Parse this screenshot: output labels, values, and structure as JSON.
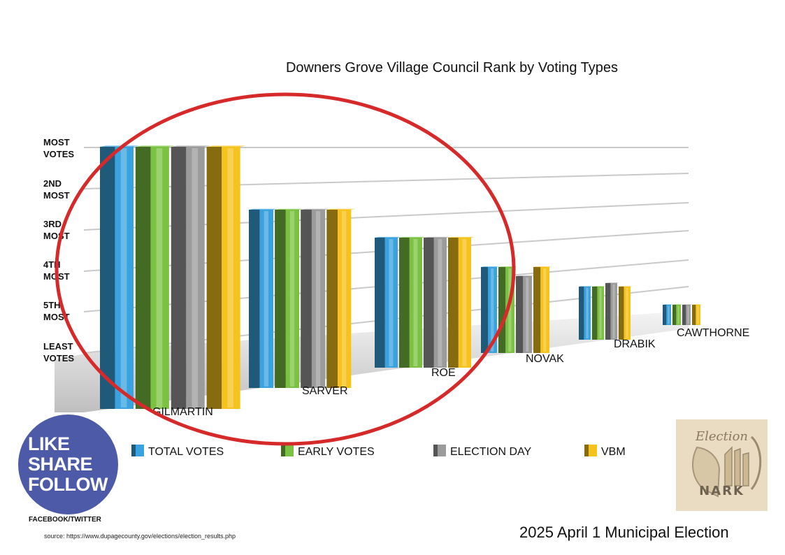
{
  "chart_data": {
    "type": "bar",
    "title": "Downers Grove Village Council Rank by Voting Types",
    "categories": [
      "GILMARTIN",
      "SARVER",
      "ROE",
      "NOVAK",
      "DRABIK",
      "CAWTHORNE"
    ],
    "y_tick_labels": [
      [
        "LEAST",
        "VOTES"
      ],
      [
        "5TH",
        "MOST"
      ],
      [
        "4TH",
        "MOST"
      ],
      [
        "3RD",
        "MOST"
      ],
      [
        "2ND",
        "MOST"
      ],
      [
        "MOST",
        "VOTES"
      ]
    ],
    "y_axis_direction": "rank 6 = least votes (bottom), rank 1 = most votes (top)",
    "series": [
      {
        "name": "TOTAL VOTES",
        "color": "#3aa3df",
        "ranks": [
          1,
          2,
          3,
          4,
          5,
          6
        ]
      },
      {
        "name": "EARLY VOTES",
        "color": "#7cc242",
        "ranks": [
          1,
          2,
          3,
          4,
          5,
          6
        ]
      },
      {
        "name": "ELECTION DAY",
        "color": "#9b9b9b",
        "ranks": [
          1,
          2,
          3,
          5,
          4,
          6
        ]
      },
      {
        "name": "VBM",
        "color": "#f6c21c",
        "ranks": [
          1,
          2,
          3,
          4,
          5,
          6
        ]
      }
    ],
    "legend_placement": "bottom",
    "grid": true,
    "annotation": "red ellipse highlighting GILMARTIN, SARVER and ROE"
  },
  "badge": {
    "lines": [
      "LIKE",
      "SHARE",
      "FOLLOW"
    ],
    "caption": "FACEBOOK/TWITTER",
    "color": "#4d5aa8"
  },
  "source": "source: https://www.dupagecounty.gov/elections/election_results.php",
  "footer": "2025 April 1 Municipal Election",
  "logo": {
    "top": "Election",
    "bottom": "NARK"
  },
  "colors": {
    "annotation": "#d62a2a",
    "grid": "#c9c9c9"
  }
}
